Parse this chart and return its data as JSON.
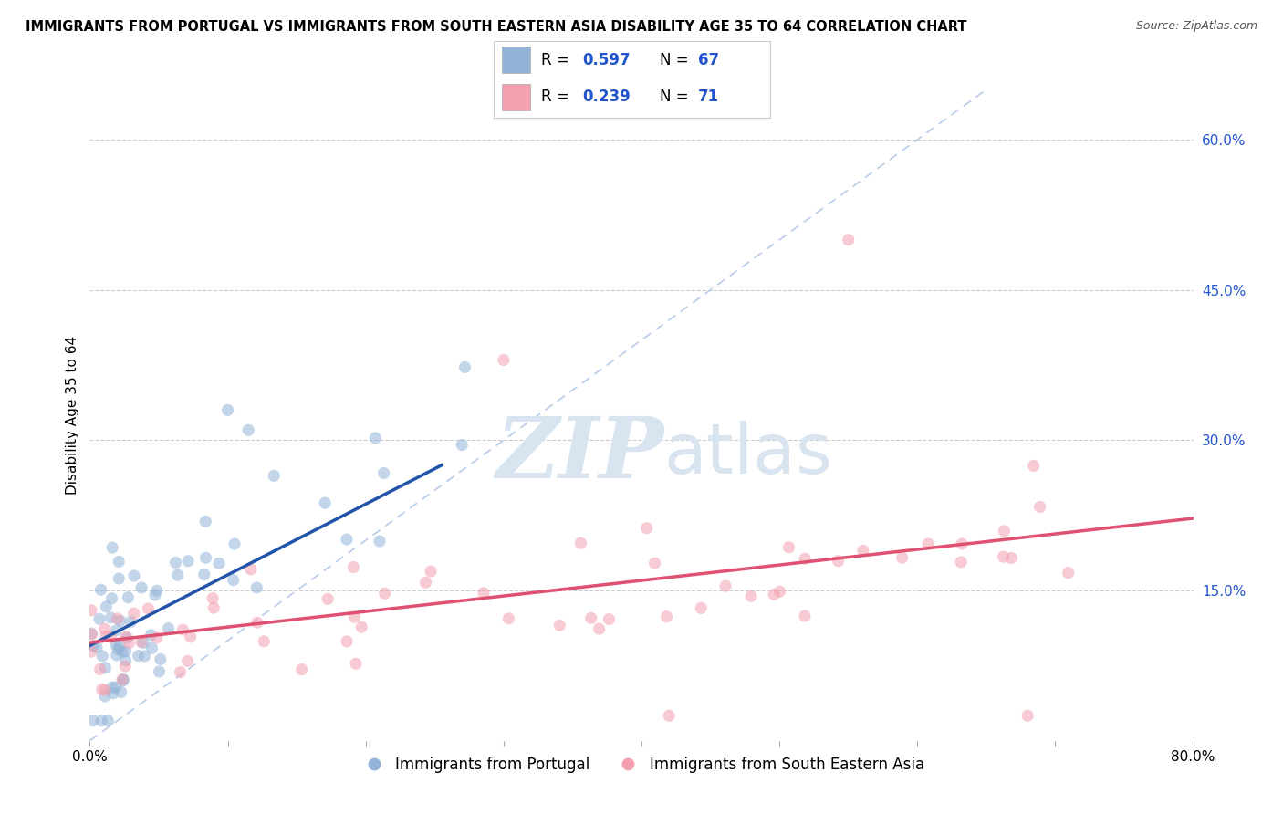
{
  "title": "IMMIGRANTS FROM PORTUGAL VS IMMIGRANTS FROM SOUTH EASTERN ASIA DISABILITY AGE 35 TO 64 CORRELATION CHART",
  "source": "Source: ZipAtlas.com",
  "ylabel": "Disability Age 35 to 64",
  "xlim": [
    0.0,
    0.8
  ],
  "ylim": [
    0.0,
    0.65
  ],
  "xtick_positions": [
    0.0,
    0.1,
    0.2,
    0.3,
    0.4,
    0.5,
    0.6,
    0.7,
    0.8
  ],
  "xticklabels": [
    "0.0%",
    "",
    "",
    "",
    "",
    "",
    "",
    "",
    "80.0%"
  ],
  "ytick_positions": [
    0.15,
    0.3,
    0.45,
    0.6
  ],
  "ytick_labels": [
    "15.0%",
    "30.0%",
    "45.0%",
    "60.0%"
  ],
  "hlines": [
    0.15,
    0.3,
    0.45,
    0.6
  ],
  "portugal_R": 0.597,
  "portugal_N": 67,
  "sea_R": 0.239,
  "sea_N": 71,
  "blue_color": "#92B4D8",
  "pink_color": "#F4A0B0",
  "blue_line_color": "#2255AA",
  "pink_line_color": "#E05070",
  "diag_color": "#B8CCE8",
  "legend_text_color": "#2255CC",
  "watermark_color": "#D8E4F0",
  "portugal_trend_x0": 0.0,
  "portugal_trend_y0": 0.095,
  "portugal_trend_x1": 0.255,
  "portugal_trend_y1": 0.275,
  "sea_trend_x0": 0.0,
  "sea_trend_y0": 0.098,
  "sea_trend_x1": 0.8,
  "sea_trend_y1": 0.222
}
